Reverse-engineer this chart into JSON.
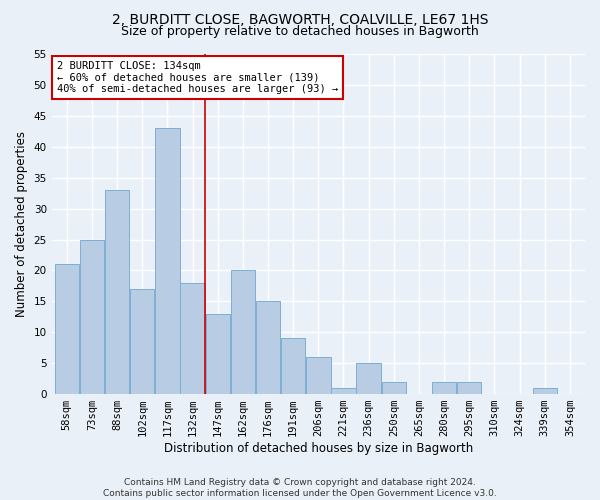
{
  "title": "2, BURDITT CLOSE, BAGWORTH, COALVILLE, LE67 1HS",
  "subtitle": "Size of property relative to detached houses in Bagworth",
  "xlabel": "Distribution of detached houses by size in Bagworth",
  "ylabel": "Number of detached properties",
  "categories": [
    "58sqm",
    "73sqm",
    "88sqm",
    "102sqm",
    "117sqm",
    "132sqm",
    "147sqm",
    "162sqm",
    "176sqm",
    "191sqm",
    "206sqm",
    "221sqm",
    "236sqm",
    "250sqm",
    "265sqm",
    "280sqm",
    "295sqm",
    "310sqm",
    "324sqm",
    "339sqm",
    "354sqm"
  ],
  "values": [
    21,
    25,
    33,
    17,
    43,
    18,
    13,
    20,
    15,
    9,
    6,
    1,
    5,
    2,
    0,
    2,
    2,
    0,
    0,
    1,
    0
  ],
  "bar_color": "#b8cce4",
  "bar_edge_color": "#7bafd4",
  "vline_after_bar": 5,
  "annotation_title": "2 BURDITT CLOSE: 134sqm",
  "annotation_line1": "← 60% of detached houses are smaller (139)",
  "annotation_line2": "40% of semi-detached houses are larger (93) →",
  "annotation_box_color": "#ffffff",
  "annotation_box_edge_color": "#cc0000",
  "vline_color": "#cc0000",
  "ylim": [
    0,
    55
  ],
  "yticks": [
    0,
    5,
    10,
    15,
    20,
    25,
    30,
    35,
    40,
    45,
    50,
    55
  ],
  "footer": "Contains HM Land Registry data © Crown copyright and database right 2024.\nContains public sector information licensed under the Open Government Licence v3.0.",
  "bg_color": "#eaf0f8",
  "grid_color": "#ffffff",
  "title_fontsize": 10,
  "subtitle_fontsize": 9,
  "axis_label_fontsize": 8.5,
  "tick_fontsize": 7.5,
  "annotation_fontsize": 7.5,
  "footer_fontsize": 6.5
}
